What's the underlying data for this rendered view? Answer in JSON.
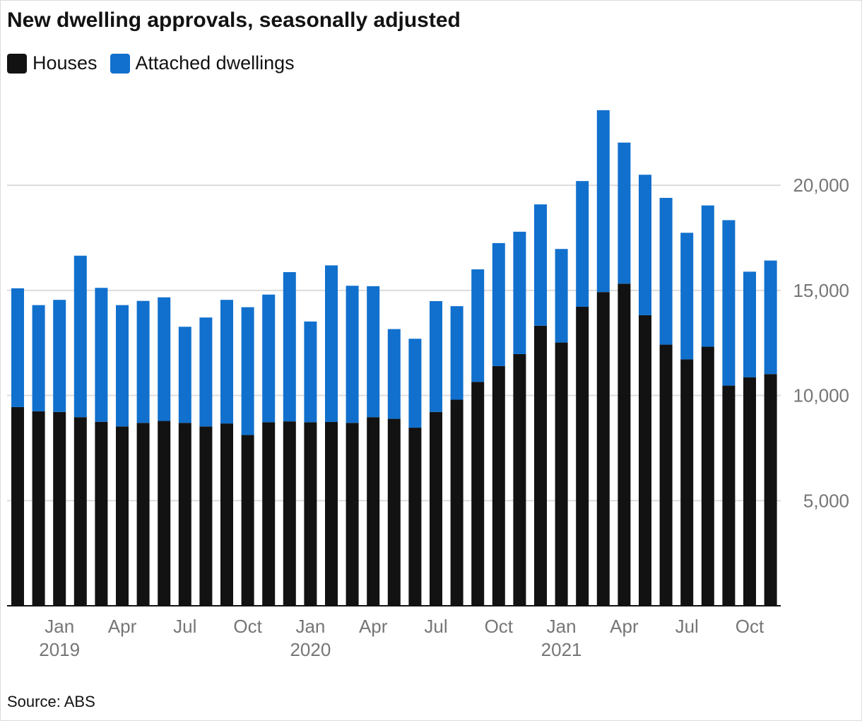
{
  "title": "New dwelling approvals, seasonally adjusted",
  "source": "Source: ABS",
  "colors": {
    "houses": "#121212",
    "attached": "#1170cd",
    "grid": "#dcdcdc",
    "axis": "#121212",
    "tick": "#767676"
  },
  "chart_data": {
    "type": "bar",
    "stacked": true,
    "title": "New dwelling approvals, seasonally adjusted",
    "xlabel": "",
    "ylabel": "",
    "ylim": [
      0,
      23600
    ],
    "yticks": [
      5000,
      10000,
      15000,
      20000
    ],
    "ytick_labels": [
      "5,000",
      "10,000",
      "15,000",
      "20,000"
    ],
    "grid": true,
    "legend_position": "top-left",
    "categories": [
      "Nov 2018",
      "Dec 2018",
      "Jan 2019",
      "Feb 2019",
      "Mar 2019",
      "Apr 2019",
      "May 2019",
      "Jun 2019",
      "Jul 2019",
      "Aug 2019",
      "Sep 2019",
      "Oct 2019",
      "Nov 2019",
      "Dec 2019",
      "Jan 2020",
      "Feb 2020",
      "Mar 2020",
      "Apr 2020",
      "May 2020",
      "Jun 2020",
      "Jul 2020",
      "Aug 2020",
      "Sep 2020",
      "Oct 2020",
      "Nov 2020",
      "Dec 2020",
      "Jan 2021",
      "Feb 2021",
      "Mar 2021",
      "Apr 2021",
      "May 2021",
      "Jun 2021",
      "Jul 2021",
      "Aug 2021",
      "Sep 2021",
      "Oct 2021",
      "Nov 2021"
    ],
    "x_tick_labels": [
      {
        "index": 2,
        "label": "Jan",
        "year": "2019"
      },
      {
        "index": 5,
        "label": "Apr",
        "year": ""
      },
      {
        "index": 8,
        "label": "Jul",
        "year": ""
      },
      {
        "index": 11,
        "label": "Oct",
        "year": ""
      },
      {
        "index": 14,
        "label": "Jan",
        "year": "2020"
      },
      {
        "index": 17,
        "label": "Apr",
        "year": ""
      },
      {
        "index": 20,
        "label": "Jul",
        "year": ""
      },
      {
        "index": 23,
        "label": "Oct",
        "year": ""
      },
      {
        "index": 26,
        "label": "Jan",
        "year": "2021"
      },
      {
        "index": 29,
        "label": "Apr",
        "year": ""
      },
      {
        "index": 32,
        "label": "Jul",
        "year": ""
      },
      {
        "index": 35,
        "label": "Oct",
        "year": ""
      }
    ],
    "series": [
      {
        "name": "Houses",
        "values": [
          9450,
          9250,
          9220,
          8970,
          8750,
          8530,
          8700,
          8790,
          8700,
          8530,
          8670,
          8120,
          8730,
          8770,
          8730,
          8740,
          8700,
          8970,
          8890,
          8470,
          9220,
          9800,
          10650,
          11400,
          11970,
          13320,
          12520,
          14220,
          14920,
          15320,
          13820,
          12420,
          11720,
          12320,
          10470,
          10870,
          11020
        ]
      }
    ],
    "series_2": [
      {
        "name": "Attached dwellings",
        "values": [
          5650,
          5050,
          5330,
          7680,
          6370,
          5770,
          5800,
          5880,
          4570,
          5180,
          5880,
          6080,
          6070,
          7100,
          4790,
          7450,
          6520,
          6230,
          4270,
          4230,
          5270,
          4450,
          5350,
          5850,
          5820,
          5770,
          4450,
          5980,
          8650,
          6710,
          6680,
          6980,
          6020,
          6720,
          7870,
          5020,
          5400
        ]
      }
    ]
  },
  "legend": [
    {
      "name": "Houses",
      "color": "#121212"
    },
    {
      "name": "Attached dwellings",
      "color": "#1170cd"
    }
  ]
}
